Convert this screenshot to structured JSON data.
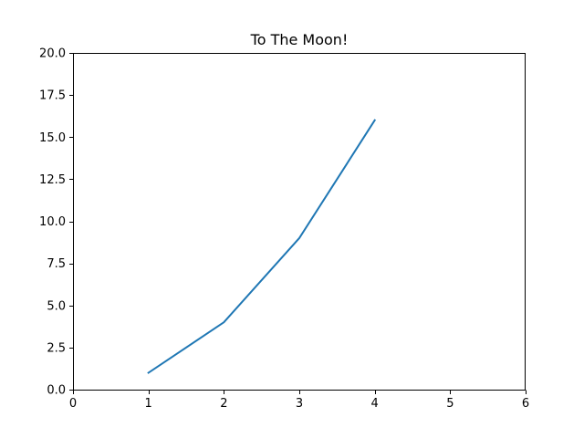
{
  "chart_data": {
    "type": "line",
    "title": "To The Moon!",
    "xlabel": "",
    "ylabel": "",
    "xlim": [
      0,
      6
    ],
    "ylim": [
      0,
      20.0
    ],
    "xticks": [
      0,
      1,
      2,
      3,
      4,
      5,
      6
    ],
    "xtick_labels": [
      "0",
      "1",
      "2",
      "3",
      "4",
      "5",
      "6"
    ],
    "yticks": [
      0,
      2.5,
      5.0,
      7.5,
      10.0,
      12.5,
      15.0,
      17.5,
      20.0
    ],
    "ytick_labels": [
      "0.0",
      "2.5",
      "5.0",
      "7.5",
      "10.0",
      "12.5",
      "15.0",
      "17.5",
      "20.0"
    ],
    "grid": false,
    "legend": false,
    "series": [
      {
        "x": [
          1,
          2,
          3,
          4
        ],
        "y": [
          1,
          4,
          9,
          16
        ],
        "color": "#1f77b4"
      }
    ]
  }
}
